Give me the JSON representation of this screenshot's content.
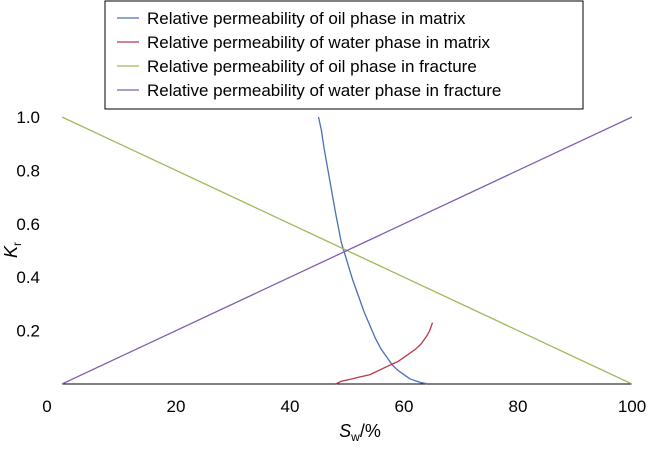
{
  "chart_data": {
    "type": "line",
    "xlabel": "S",
    "xlabel_sub": "w",
    "xlabel_unit": "/%",
    "ylabel": "K",
    "ylabel_sub": "r",
    "xlim": [
      0,
      100
    ],
    "ylim": [
      0,
      1.0
    ],
    "xticks": [
      "0",
      "20",
      "40",
      "60",
      "80",
      "100"
    ],
    "yticks": [
      "0.2",
      "0.4",
      "0.6",
      "0.8",
      "1.0"
    ],
    "grid": false,
    "legend_position": "top-center",
    "series": [
      {
        "name": "Relative permeability of oil phase in matrix",
        "color": "#4a6fb5",
        "points": [
          [
            45,
            1.0
          ],
          [
            45.5,
            0.95
          ],
          [
            46,
            0.88
          ],
          [
            47,
            0.76
          ],
          [
            48,
            0.64
          ],
          [
            49,
            0.53
          ],
          [
            50,
            0.46
          ],
          [
            51,
            0.39
          ],
          [
            52,
            0.33
          ],
          [
            53,
            0.27
          ],
          [
            54,
            0.22
          ],
          [
            55,
            0.17
          ],
          [
            56,
            0.13
          ],
          [
            57,
            0.1
          ],
          [
            58,
            0.07
          ],
          [
            59,
            0.05
          ],
          [
            60,
            0.035
          ],
          [
            61,
            0.02
          ],
          [
            62,
            0.012
          ],
          [
            63,
            0.005
          ],
          [
            64,
            0.001
          ]
        ]
      },
      {
        "name": "Relative permeability of water phase in matrix",
        "color": "#b83a4b",
        "points": [
          [
            48,
            0.0
          ],
          [
            49,
            0.01
          ],
          [
            50,
            0.015
          ],
          [
            51,
            0.02
          ],
          [
            52,
            0.025
          ],
          [
            53,
            0.03
          ],
          [
            54,
            0.035
          ],
          [
            55,
            0.045
          ],
          [
            56,
            0.055
          ],
          [
            57,
            0.065
          ],
          [
            58,
            0.075
          ],
          [
            59,
            0.085
          ],
          [
            60,
            0.1
          ],
          [
            61,
            0.115
          ],
          [
            62,
            0.13
          ],
          [
            63,
            0.15
          ],
          [
            64,
            0.18
          ],
          [
            64.5,
            0.2
          ],
          [
            65,
            0.23
          ]
        ]
      },
      {
        "name": "Relative permeability of oil phase in fracture",
        "color": "#9bba59",
        "points": [
          [
            0,
            1.0
          ],
          [
            100,
            0.0
          ]
        ]
      },
      {
        "name": "Relative permeability of water phase in fracture",
        "color": "#7f5fae",
        "points": [
          [
            0,
            0.0
          ],
          [
            100,
            1.0
          ]
        ]
      }
    ]
  }
}
